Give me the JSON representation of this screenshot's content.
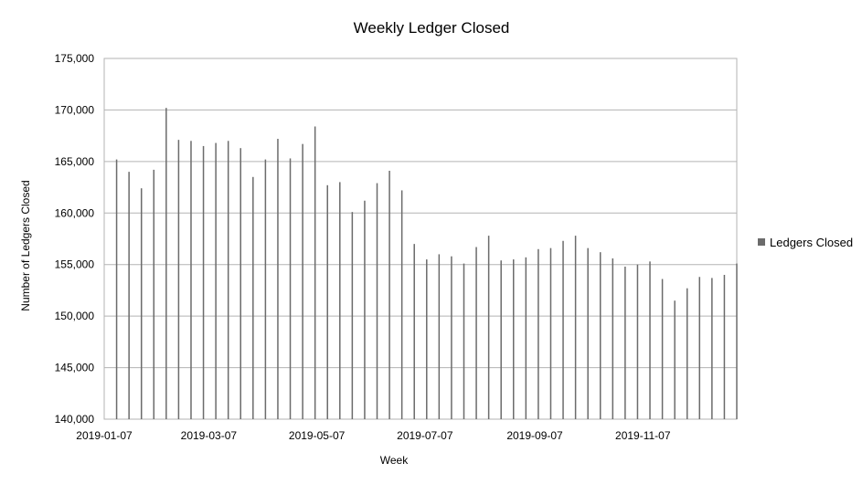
{
  "chart_data": {
    "type": "bar",
    "title": "Weekly Ledger Closed",
    "xlabel": "Week",
    "ylabel": "Number of Ledgers Closed",
    "ylim": [
      140000,
      175000
    ],
    "yticks": [
      140000,
      145000,
      150000,
      155000,
      160000,
      165000,
      170000,
      175000
    ],
    "ytick_labels": [
      "140,000",
      "145,000",
      "150,000",
      "155,000",
      "160,000",
      "165,000",
      "170,000",
      "175,000"
    ],
    "xtick_labels": [
      {
        "date": "2019-01-07",
        "label": "2019-01-07"
      },
      {
        "date": "2019-03-07",
        "label": "2019-03-07"
      },
      {
        "date": "2019-05-07",
        "label": "2019-05-07"
      },
      {
        "date": "2019-07-07",
        "label": "2019-07-07"
      },
      {
        "date": "2019-09-07",
        "label": "2019-09-07"
      },
      {
        "date": "2019-11-07",
        "label": "2019-11-07"
      }
    ],
    "xlim": [
      "2019-01-07",
      "2019-12-30"
    ],
    "grid": "horizontal",
    "legend": "right",
    "series": [
      {
        "name": "Ledgers Closed",
        "color": "#6b6b6b",
        "x": [
          "2019-01-14",
          "2019-01-21",
          "2019-01-28",
          "2019-02-04",
          "2019-02-11",
          "2019-02-18",
          "2019-02-25",
          "2019-03-04",
          "2019-03-11",
          "2019-03-18",
          "2019-03-25",
          "2019-04-01",
          "2019-04-08",
          "2019-04-15",
          "2019-04-22",
          "2019-04-29",
          "2019-05-06",
          "2019-05-13",
          "2019-05-20",
          "2019-05-27",
          "2019-06-03",
          "2019-06-10",
          "2019-06-17",
          "2019-06-24",
          "2019-07-01",
          "2019-07-08",
          "2019-07-15",
          "2019-07-22",
          "2019-07-29",
          "2019-08-05",
          "2019-08-12",
          "2019-08-19",
          "2019-08-26",
          "2019-09-02",
          "2019-09-09",
          "2019-09-16",
          "2019-09-23",
          "2019-09-30",
          "2019-10-07",
          "2019-10-14",
          "2019-10-21",
          "2019-10-28",
          "2019-11-04",
          "2019-11-11",
          "2019-11-18",
          "2019-11-25",
          "2019-12-02",
          "2019-12-09",
          "2019-12-16",
          "2019-12-23",
          "2019-12-30"
        ],
        "values": [
          165200,
          164000,
          162400,
          164200,
          170200,
          167100,
          167000,
          166500,
          166800,
          167000,
          166300,
          163500,
          165200,
          167200,
          165300,
          166700,
          168400,
          162700,
          163000,
          160100,
          161200,
          162900,
          164100,
          162200,
          157000,
          155500,
          156000,
          155800,
          155100,
          156700,
          157800,
          155400,
          155500,
          155700,
          156500,
          156600,
          157300,
          157800,
          156600,
          156200,
          155600,
          154800,
          155000,
          155300,
          153600,
          151500,
          152700,
          153800,
          153700,
          154000,
          155100
        ]
      }
    ]
  }
}
